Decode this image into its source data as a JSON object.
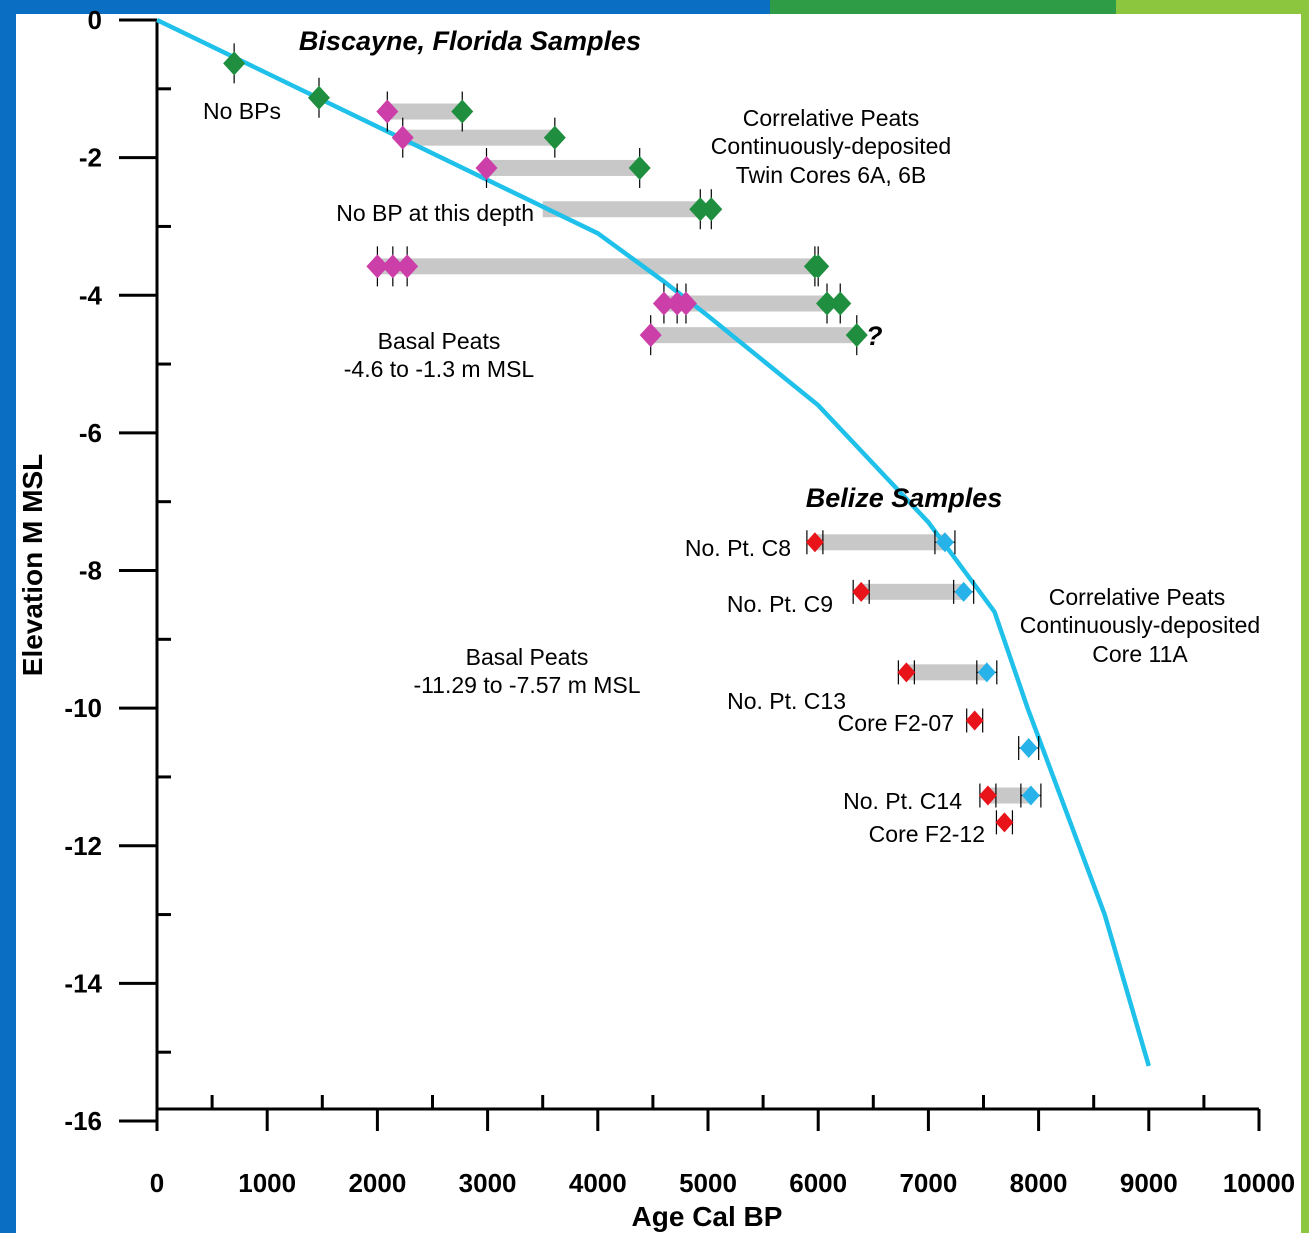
{
  "colors": {
    "curve": "#1fc1ea",
    "bar": "#c8c8c8",
    "biscayne_older": "#1f8f3f",
    "biscayne_basal": "#cc3fa8",
    "belize_basal": "#e8141a",
    "belize_correlative": "#27b3ea",
    "frame_blue": "#0a6fc2",
    "frame_green": "#2e9c46",
    "frame_lime": "#8cc63f"
  },
  "chart_data": {
    "type": "scatter",
    "title": "",
    "xlabel": "Age Cal BP",
    "ylabel": "Elevation M MSL",
    "xlim": [
      0,
      10000
    ],
    "ylim": [
      -16,
      0
    ],
    "xticks": [
      "0",
      "1000",
      "2000",
      "3000",
      "4000",
      "5000",
      "6000",
      "7000",
      "8000",
      "9000",
      "10000"
    ],
    "yticks": [
      "0",
      "-2",
      "-4",
      "-6",
      "-8",
      "-10",
      "-12",
      "-14",
      "-16"
    ],
    "grid": false,
    "curve": {
      "x": [
        0,
        4000,
        4600,
        5000,
        6000,
        7000,
        7600,
        7900,
        8600,
        9000
      ],
      "y": [
        0,
        -3.1,
        -3.8,
        -4.3,
        -5.6,
        -7.3,
        -8.6,
        -10.0,
        -13.0,
        -15.2
      ]
    },
    "biscayne_single": [
      {
        "x": 700,
        "y": -0.63
      },
      {
        "x": 1470,
        "y": -1.13
      }
    ],
    "biscayne_pairs": [
      {
        "basal": [
          2090
        ],
        "correlative": [
          2770
        ],
        "y": -1.33,
        "bar": [
          2090,
          2770
        ]
      },
      {
        "basal": [
          2230
        ],
        "correlative": [
          3610
        ],
        "y": -1.71,
        "bar": [
          2230,
          3610
        ]
      },
      {
        "basal": [
          2990
        ],
        "correlative": [
          4380
        ],
        "y": -2.15,
        "bar": [
          2990,
          4380
        ]
      },
      {
        "basal": [],
        "correlative": [
          4930,
          5030
        ],
        "y": -2.75,
        "bar": [
          3500,
          4930
        ]
      },
      {
        "basal": [
          2000,
          2140,
          2270
        ],
        "correlative": [
          5970,
          6000
        ],
        "y": -3.58,
        "bar": [
          2000,
          5970
        ]
      },
      {
        "basal": [
          4600,
          4720,
          4800
        ],
        "correlative": [
          6080,
          6200
        ],
        "y": -4.12,
        "bar": [
          4600,
          6080
        ]
      },
      {
        "basal": [
          4480
        ],
        "correlative": [
          6350
        ],
        "y": -4.58,
        "bar": [
          4480,
          6350
        ]
      }
    ],
    "belize_pairs": [
      {
        "basal": 5970,
        "correlative": 7150,
        "y": -7.59,
        "bar": [
          5970,
          7150
        ]
      },
      {
        "basal": 6390,
        "correlative": 7320,
        "y": -8.31,
        "bar": [
          6390,
          7320
        ]
      },
      {
        "basal": 6800,
        "correlative": 7530,
        "y": -9.48,
        "bar": [
          6800,
          7530
        ]
      },
      {
        "basal": 7420,
        "correlative": null,
        "y": -10.18,
        "bar": null
      },
      {
        "basal": null,
        "correlative": 7910,
        "y": -10.58,
        "bar": null
      },
      {
        "basal": 7540,
        "correlative": 7930,
        "y": -11.27,
        "bar": [
          7540,
          7930
        ]
      },
      {
        "basal": 7690,
        "correlative": null,
        "y": -11.66,
        "bar": null
      }
    ]
  },
  "annotations": {
    "biscayne_title": "Biscayne, Florida Samples",
    "no_bps": "No BPs",
    "correlative_peats_1": "Correlative Peats",
    "correlative_peats_2": "Continuously-deposited",
    "correlative_peats_3": "Twin Cores 6A, 6B",
    "no_bp_depth": "No BP at this depth",
    "basal_peats_1": "Basal Peats",
    "basal_peats_2": "-4.6 to -1.3 m MSL",
    "question": "?",
    "belize_title": "Belize Samples",
    "no_pt_c8": "No. Pt. C8",
    "no_pt_c9": "No. Pt. C9",
    "belize_corr_1": "Correlative Peats",
    "belize_corr_2": "Continuously-deposited",
    "belize_corr_3": "Core 11A",
    "belize_basal_1": "Basal Peats",
    "belize_basal_2": "-11.29 to -7.57 m MSL",
    "no_pt_c13": "No. Pt. C13",
    "core_f207": "Core F2-07",
    "no_pt_c14": "No. Pt. C14",
    "core_f212": "Core F2-12"
  }
}
